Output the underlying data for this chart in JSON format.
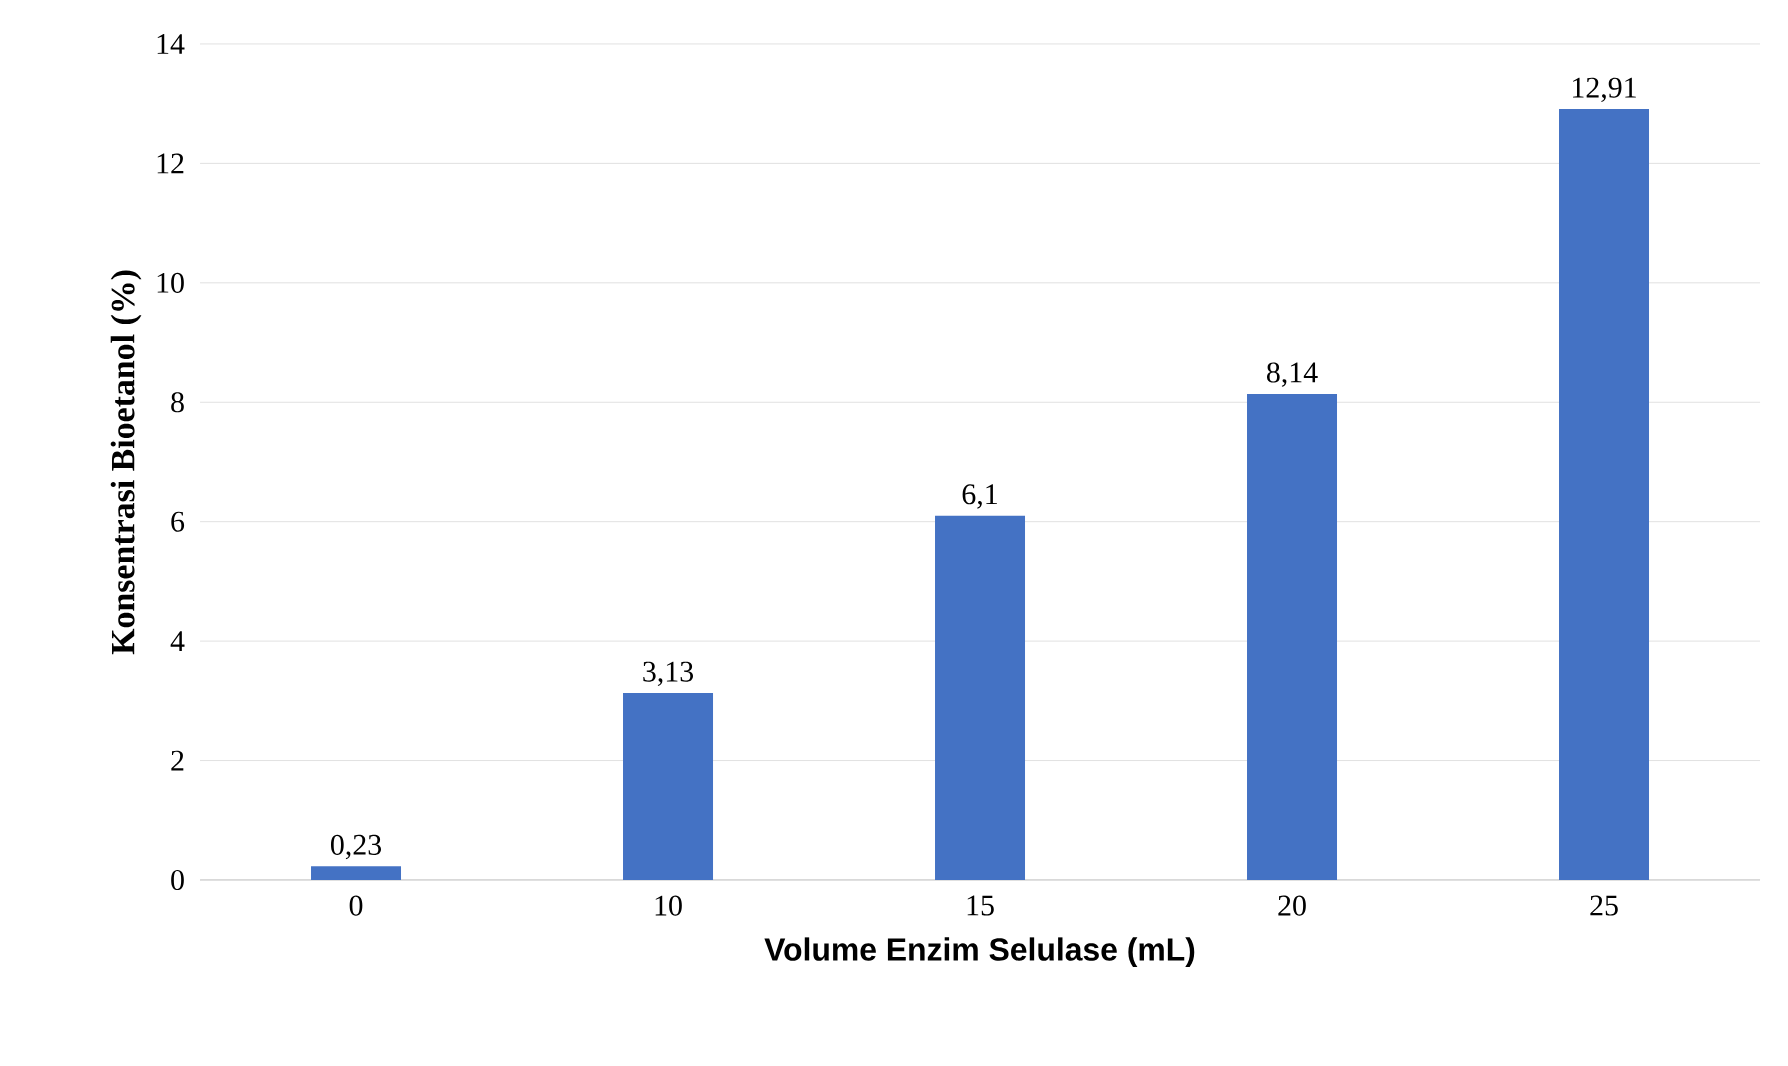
{
  "chart_data": {
    "type": "bar",
    "xlabel": "Volume Enzim Selulase (mL)",
    "ylabel": "Konsentrasi Bioetanol (%)",
    "categories": [
      "0",
      "10",
      "15",
      "20",
      "25"
    ],
    "values": [
      0.23,
      3.13,
      6.1,
      8.14,
      12.91
    ],
    "value_labels": [
      "0,23",
      "3,13",
      "6,1",
      "8,14",
      "12,91"
    ],
    "color": "#4472c4",
    "ylim": [
      0,
      14
    ],
    "yticks": [
      0,
      2,
      4,
      6,
      8,
      10,
      12,
      14
    ],
    "grid": "y"
  }
}
